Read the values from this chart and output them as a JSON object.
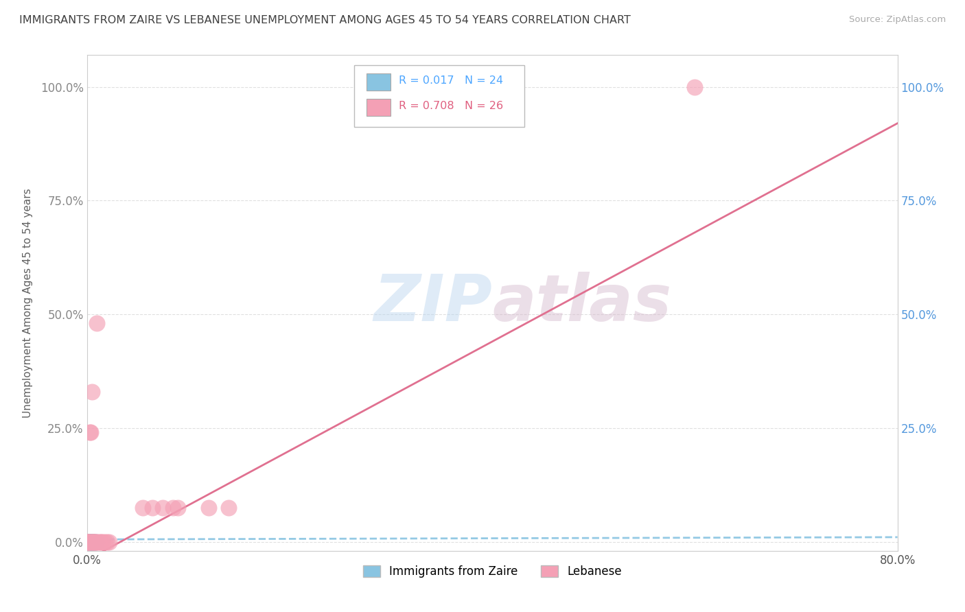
{
  "title": "IMMIGRANTS FROM ZAIRE VS LEBANESE UNEMPLOYMENT AMONG AGES 45 TO 54 YEARS CORRELATION CHART",
  "source": "Source: ZipAtlas.com",
  "ylabel": "Unemployment Among Ages 45 to 54 years",
  "watermark": "ZIPatlas",
  "xlim": [
    0,
    0.8
  ],
  "ylim": [
    -0.02,
    1.07
  ],
  "zaire_x": [
    0.001,
    0.002,
    0.002,
    0.002,
    0.003,
    0.003,
    0.003,
    0.003,
    0.003,
    0.004,
    0.004,
    0.004,
    0.004,
    0.004,
    0.005,
    0.005,
    0.005,
    0.005,
    0.006,
    0.006,
    0.006,
    0.007,
    0.008,
    0.009
  ],
  "zaire_y": [
    0.0,
    0.0,
    0.0,
    0.0,
    0.0,
    0.0,
    0.0,
    0.0,
    0.0,
    0.0,
    0.0,
    0.0,
    0.0,
    0.0,
    0.0,
    0.0,
    0.0,
    0.0,
    0.0,
    0.0,
    0.0,
    0.0,
    0.0,
    0.0
  ],
  "lebanese_x": [
    0.001,
    0.001,
    0.002,
    0.002,
    0.002,
    0.003,
    0.003,
    0.004,
    0.004,
    0.005,
    0.005,
    0.006,
    0.006,
    0.007,
    0.007,
    0.008,
    0.009,
    0.01,
    0.01,
    0.012,
    0.014,
    0.014,
    0.016,
    0.018,
    0.02,
    0.022
  ],
  "lebanese_y": [
    0.0,
    0.0,
    0.0,
    0.0,
    0.0,
    0.0,
    0.24,
    0.24,
    0.0,
    0.0,
    0.33,
    0.0,
    0.0,
    0.0,
    0.0,
    0.0,
    0.0,
    0.0,
    0.48,
    0.0,
    0.0,
    0.0,
    0.0,
    0.0,
    0.0,
    0.0
  ],
  "lebanese_scattered_x": [
    0.055,
    0.065,
    0.075,
    0.085,
    0.09,
    0.12,
    0.14,
    0.6
  ],
  "lebanese_scattered_y": [
    0.075,
    0.075,
    0.075,
    0.075,
    0.075,
    0.075,
    0.075,
    1.0
  ],
  "pink_line_x": [
    0.0,
    0.8
  ],
  "pink_line_y": [
    -0.04,
    0.92
  ],
  "blue_line_x": [
    0.0,
    0.8
  ],
  "blue_line_y": [
    0.005,
    0.01
  ],
  "background_color": "#ffffff",
  "grid_color": "#e0e0e0",
  "blue_color": "#89c4e1",
  "pink_color": "#f4a0b5",
  "title_color": "#404040",
  "axis_label_color": "#606060",
  "tick_color_x": "#555555",
  "tick_color_y_left": "#888888",
  "tick_color_y_right": "#5599dd"
}
